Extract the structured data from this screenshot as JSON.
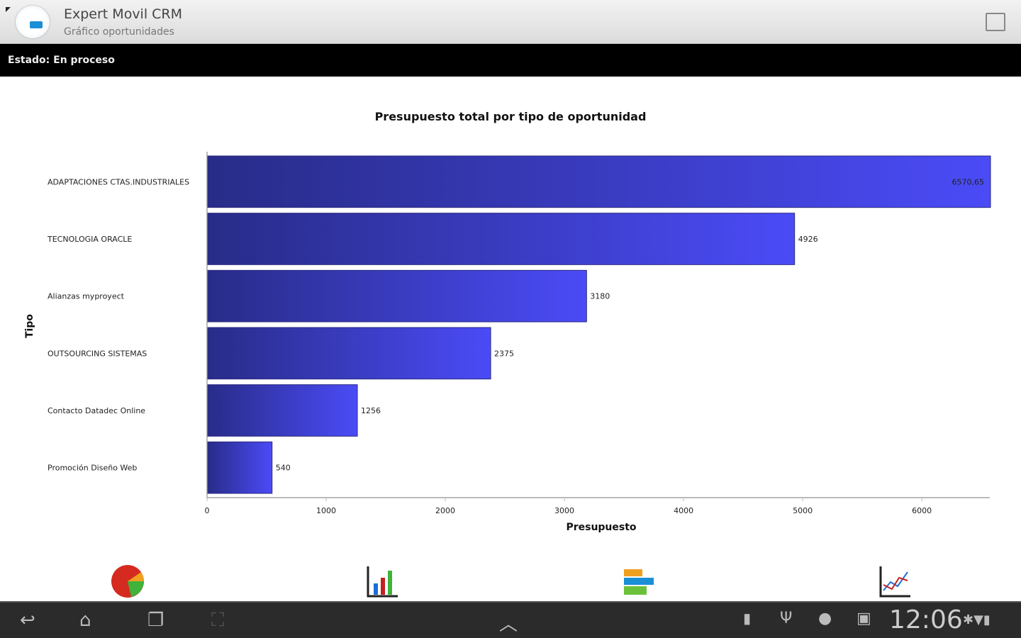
{
  "app": {
    "title": "Expert Movil CRM",
    "subtitle": "Gráfico oportunidades"
  },
  "status": {
    "text": "Estado: En proceso"
  },
  "chart_data": {
    "type": "bar",
    "orientation": "horizontal",
    "title": "Presupuesto total por tipo de oportunidad",
    "xlabel": "Presupuesto",
    "ylabel": "Tipo",
    "categories": [
      "ADAPTACIONES CTAS.INDUSTRIALES",
      "TECNOLOGIA ORACLE",
      "Alianzas myproyect",
      "OUTSOURCING SISTEMAS",
      "Contacto Datadec Online",
      "Promoción Diseño Web"
    ],
    "values": [
      6570.65,
      4926,
      3180,
      2375,
      1256,
      540
    ],
    "value_labels": [
      "6570,65",
      "4926",
      "3180",
      "2375",
      "1256",
      "540"
    ],
    "xticks": [
      0,
      1000,
      2000,
      3000,
      4000,
      5000,
      6000
    ],
    "xlim": [
      0,
      6570.65
    ],
    "grid": false,
    "colors": {
      "start": "#282c88",
      "end": "#4b4bf7"
    }
  },
  "chart_buttons": [
    {
      "icon": "pie-chart-icon"
    },
    {
      "icon": "bar-chart-icon"
    },
    {
      "icon": "horizontal-bar-chart-icon"
    },
    {
      "icon": "line-chart-icon"
    }
  ],
  "system": {
    "clock": "12:06"
  }
}
